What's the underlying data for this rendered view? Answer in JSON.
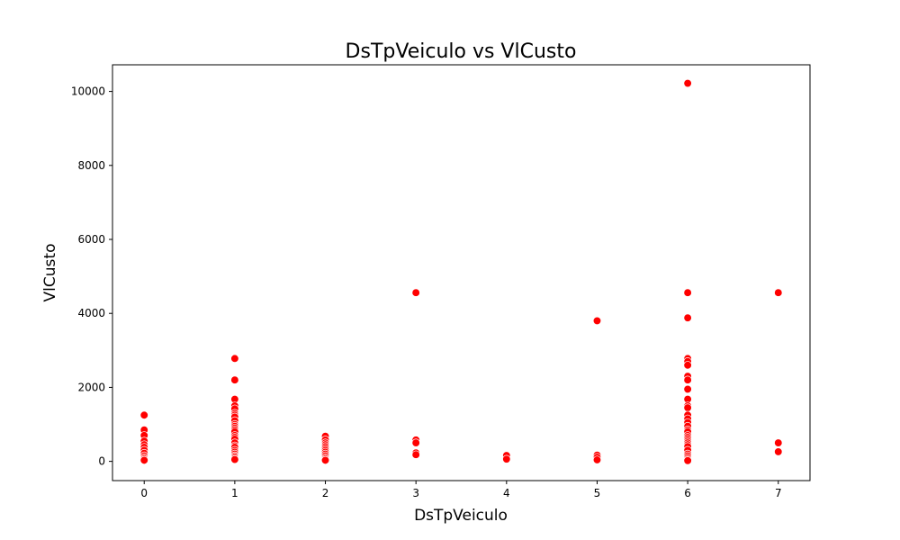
{
  "chart_data": {
    "type": "scatter",
    "title": "DsTpVeiculo vs VlCusto",
    "xlabel": "DsTpVeiculo",
    "ylabel": "VlCusto",
    "xlim": [
      -0.35,
      7.35
    ],
    "ylim": [
      -520,
      10720
    ],
    "xticks": [
      0,
      1,
      2,
      3,
      4,
      5,
      6,
      7
    ],
    "yticks": [
      0,
      2000,
      4000,
      6000,
      8000,
      10000
    ],
    "grid": false,
    "legend": "none",
    "marker_color": "#ff0000",
    "series": [
      {
        "points": [
          [
            0,
            1250
          ],
          [
            0,
            850
          ],
          [
            0,
            700
          ],
          [
            0,
            550
          ],
          [
            0,
            450
          ],
          [
            0,
            380
          ],
          [
            0,
            300
          ],
          [
            0,
            220
          ],
          [
            0,
            150
          ],
          [
            0,
            100
          ],
          [
            0,
            60
          ],
          [
            0,
            30
          ],
          [
            1,
            2780
          ],
          [
            1,
            2200
          ],
          [
            1,
            1680
          ],
          [
            1,
            1500
          ],
          [
            1,
            1420
          ],
          [
            1,
            1300
          ],
          [
            1,
            1250
          ],
          [
            1,
            1200
          ],
          [
            1,
            1100
          ],
          [
            1,
            1000
          ],
          [
            1,
            950
          ],
          [
            1,
            900
          ],
          [
            1,
            850
          ],
          [
            1,
            800
          ],
          [
            1,
            700
          ],
          [
            1,
            650
          ],
          [
            1,
            600
          ],
          [
            1,
            500
          ],
          [
            1,
            420
          ],
          [
            1,
            380
          ],
          [
            1,
            300
          ],
          [
            1,
            250
          ],
          [
            1,
            200
          ],
          [
            1,
            150
          ],
          [
            1,
            120
          ],
          [
            1,
            80
          ],
          [
            1,
            50
          ],
          [
            2,
            680
          ],
          [
            2,
            580
          ],
          [
            2,
            500
          ],
          [
            2,
            450
          ],
          [
            2,
            400
          ],
          [
            2,
            350
          ],
          [
            2,
            300
          ],
          [
            2,
            250
          ],
          [
            2,
            200
          ],
          [
            2,
            150
          ],
          [
            2,
            100
          ],
          [
            2,
            60
          ],
          [
            2,
            30
          ],
          [
            3,
            4560
          ],
          [
            3,
            580
          ],
          [
            3,
            500
          ],
          [
            3,
            230
          ],
          [
            3,
            180
          ],
          [
            4,
            160
          ],
          [
            4,
            60
          ],
          [
            5,
            3800
          ],
          [
            5,
            170
          ],
          [
            5,
            110
          ],
          [
            5,
            40
          ],
          [
            6,
            10220
          ],
          [
            6,
            4560
          ],
          [
            6,
            3880
          ],
          [
            6,
            2780
          ],
          [
            6,
            2700
          ],
          [
            6,
            2600
          ],
          [
            6,
            2300
          ],
          [
            6,
            2200
          ],
          [
            6,
            1950
          ],
          [
            6,
            1680
          ],
          [
            6,
            1500
          ],
          [
            6,
            1450
          ],
          [
            6,
            1250
          ],
          [
            6,
            1150
          ],
          [
            6,
            1050
          ],
          [
            6,
            950
          ],
          [
            6,
            850
          ],
          [
            6,
            800
          ],
          [
            6,
            700
          ],
          [
            6,
            650
          ],
          [
            6,
            600
          ],
          [
            6,
            550
          ],
          [
            6,
            500
          ],
          [
            6,
            450
          ],
          [
            6,
            400
          ],
          [
            6,
            300
          ],
          [
            6,
            200
          ],
          [
            6,
            150
          ],
          [
            6,
            100
          ],
          [
            6,
            50
          ],
          [
            6,
            20
          ],
          [
            7,
            4560
          ],
          [
            7,
            500
          ],
          [
            7,
            260
          ]
        ]
      }
    ]
  }
}
